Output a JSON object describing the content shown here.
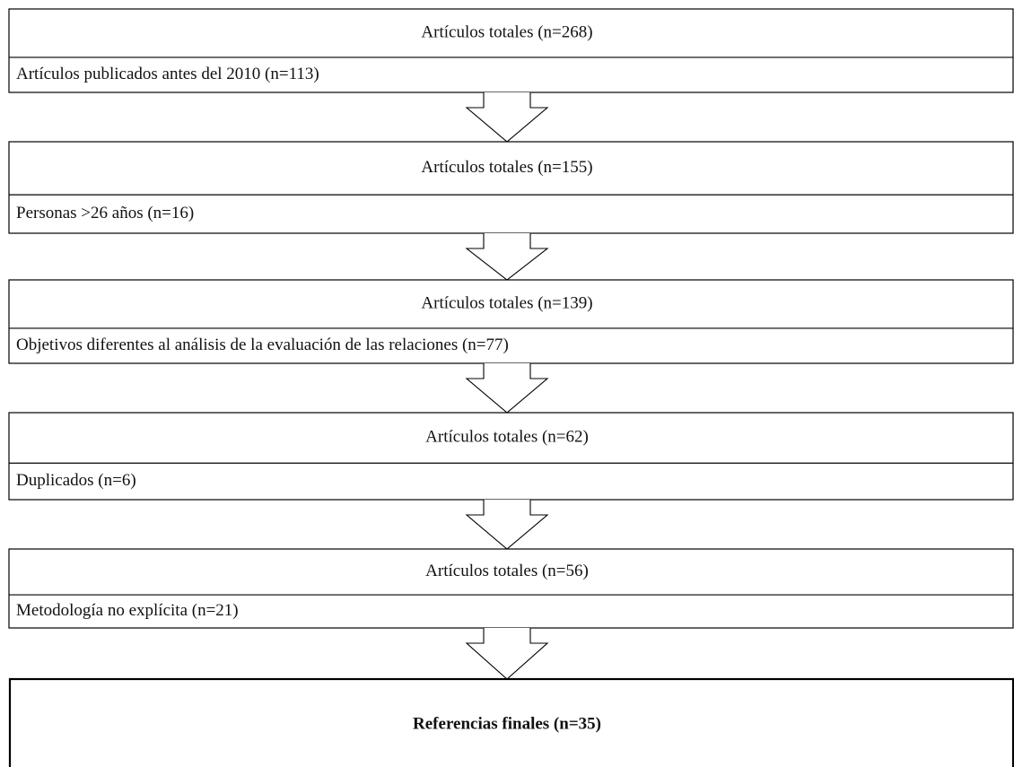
{
  "stages": [
    {
      "total": "Artículos totales (n=268)",
      "excluded": "Artículos publicados antes del 2010 (n=113)"
    },
    {
      "total": "Artículos totales (n=155)",
      "excluded": "Personas >26 años (n=16)"
    },
    {
      "total": "Artículos totales (n=139)",
      "excluded": "Objetivos diferentes al análisis de la evaluación de las relaciones (n=77)"
    },
    {
      "total": "Artículos totales (n=62)",
      "excluded": "Duplicados (n=6)"
    },
    {
      "total": "Artículos totales (n=56)",
      "excluded": "Metodología no explícita (n=21)"
    }
  ],
  "final": "Referencias finales (n=35)"
}
